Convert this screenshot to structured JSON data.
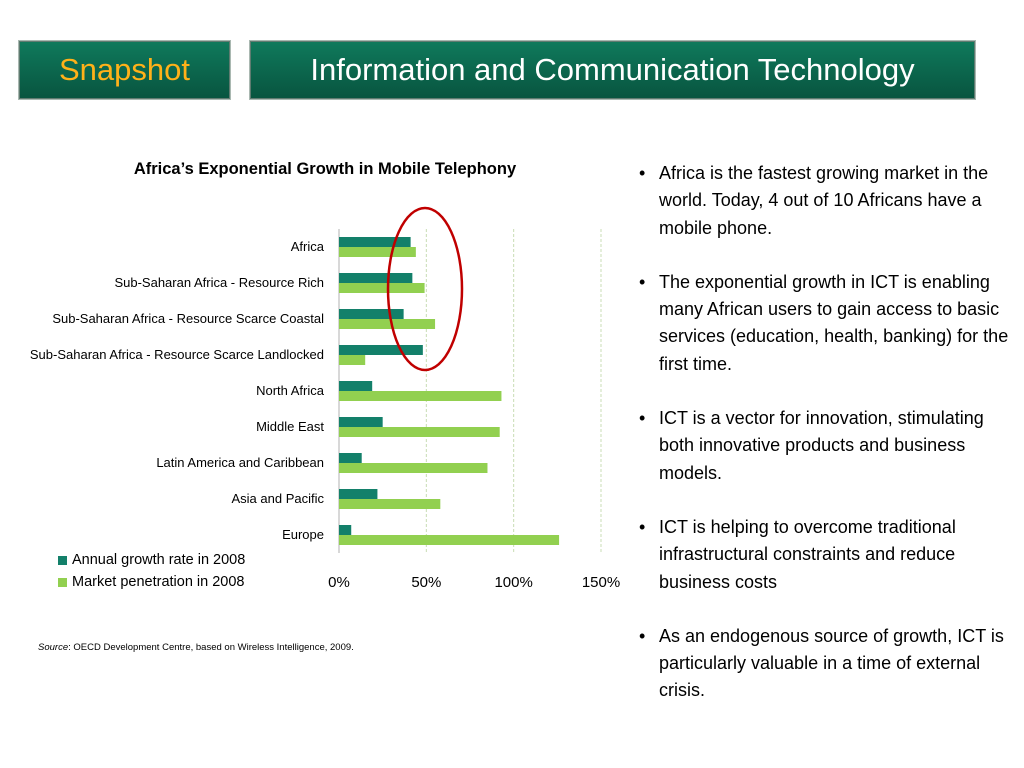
{
  "header": {
    "snapshot_label": "Snapshot",
    "title": "Information and Communication Technology"
  },
  "colors": {
    "banner_green": "#0c6b50",
    "snapshot_text": "#ffb119",
    "annual_growth": "#13806a",
    "market_penetration": "#92d050",
    "highlight_ellipse": "#c00000"
  },
  "chart_data": {
    "type": "bar",
    "orientation": "horizontal",
    "title": "Africa’s Exponential Growth in Mobile Telephony",
    "categories": [
      "Africa",
      "Sub-Saharan Africa - Resource Rich",
      "Sub-Saharan Africa - Resource Scarce Coastal",
      "Sub-Saharan Africa - Resource Scarce Landlocked",
      "North Africa",
      "Middle East",
      "Latin America and Caribbean",
      "Asia and Pacific",
      "Europe"
    ],
    "series": [
      {
        "name": "Annual growth rate in 2008",
        "color": "#13806a",
        "values": [
          41,
          42,
          37,
          48,
          19,
          25,
          13,
          22,
          7
        ]
      },
      {
        "name": "Market penetration in 2008",
        "color": "#92d050",
        "values": [
          44,
          49,
          55,
          15,
          93,
          92,
          85,
          58,
          126
        ]
      }
    ],
    "xlim": [
      0,
      150
    ],
    "xticks": [
      "0%",
      "50%",
      "100%",
      "150%"
    ],
    "grid": "vertical dashed",
    "legend": "bottom-left",
    "annotation": "red ellipse highlighting the annual growth rate of African regions"
  },
  "source": {
    "label": "Source",
    "text": ": OECD Development Centre, based on Wireless Intelligence, 2009."
  },
  "bullets": [
    "Africa is the fastest growing market in the world. Today, 4 out of 10 Africans have a mobile phone.",
    " The exponential growth in ICT is enabling many African users to gain access to basic services (education, health, banking) for the first time.",
    "ICT  is a vector for innovation, stimulating both innovative products and business models.",
    "ICT is helping to overcome traditional infrastructural constraints and reduce business costs",
    "As an endogenous source of growth, ICT is particularly valuable in a time of external crisis."
  ]
}
